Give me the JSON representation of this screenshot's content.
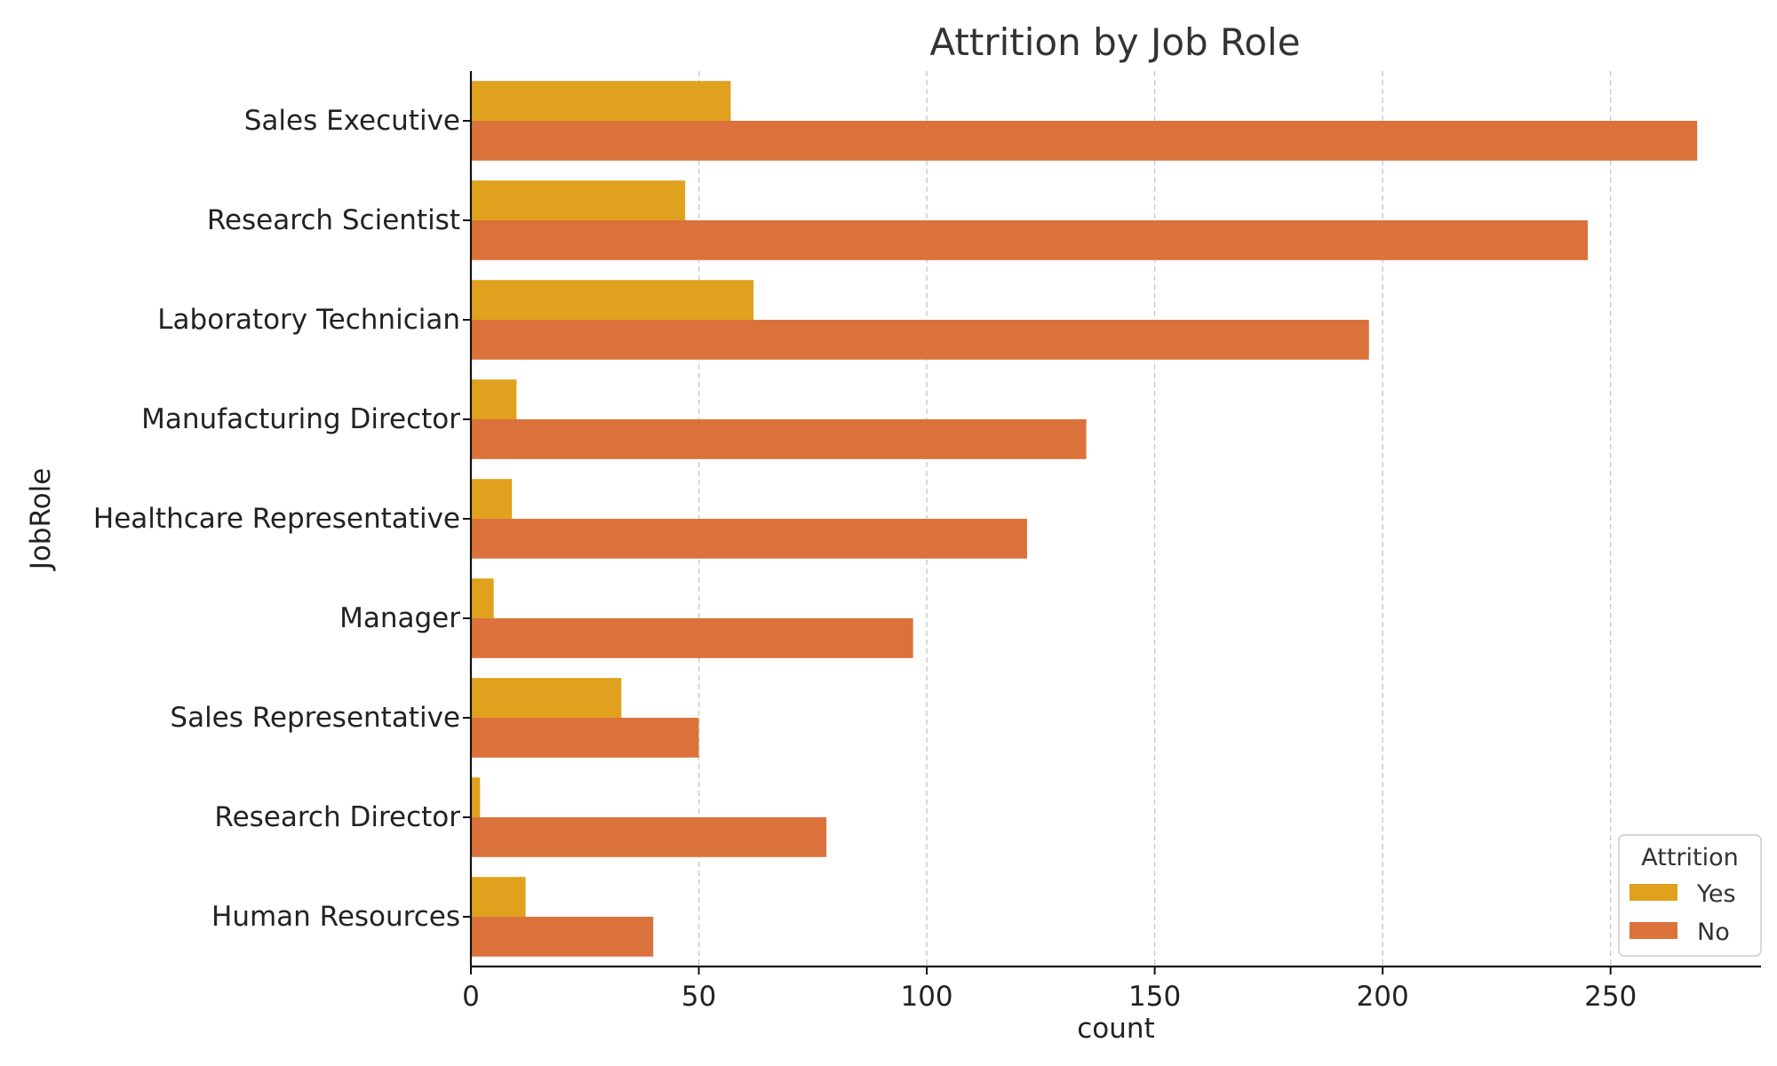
{
  "chart_data": {
    "type": "bar",
    "orientation": "horizontal",
    "title": "Attrition by Job Role",
    "xlabel": "count",
    "ylabel": "JobRole",
    "xlim": [
      0,
      283
    ],
    "xticks": [
      0,
      50,
      100,
      150,
      200,
      250
    ],
    "grid": "x-dashed",
    "categories": [
      "Sales Executive",
      "Research Scientist",
      "Laboratory Technician",
      "Manufacturing Director",
      "Healthcare Representative",
      "Manager",
      "Sales Representative",
      "Research Director",
      "Human Resources"
    ],
    "series": [
      {
        "name": "Yes",
        "color": "#e0a11e",
        "values": [
          57,
          47,
          62,
          10,
          9,
          5,
          33,
          2,
          12
        ]
      },
      {
        "name": "No",
        "color": "#dc723b",
        "values": [
          269,
          245,
          197,
          135,
          122,
          97,
          50,
          78,
          40
        ]
      }
    ],
    "legend": {
      "title": "Attrition",
      "placement": "bottom-right"
    }
  }
}
